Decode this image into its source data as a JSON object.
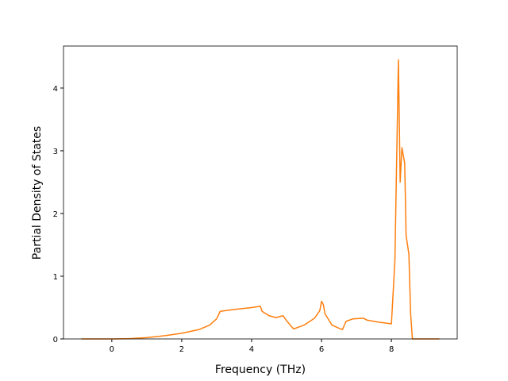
{
  "chart_data": {
    "type": "line",
    "x_label": "Frequency (THz)",
    "y_label": "Partial Density of States",
    "series": [
      {
        "color": "#ff7f0e",
        "x": [
          -0.87,
          0,
          0.5,
          1,
          1.5,
          2,
          2.5,
          2.8,
          3.0,
          3.1,
          3.5,
          4.0,
          4.25,
          4.3,
          4.5,
          4.7,
          4.9,
          5.0,
          5.2,
          5.5,
          5.8,
          5.95,
          6.0,
          6.05,
          6.1,
          6.3,
          6.5,
          6.6,
          6.7,
          6.9,
          7.2,
          7.3,
          7.6,
          8.0,
          8.1,
          8.2,
          8.25,
          8.3,
          8.38,
          8.42,
          8.5,
          8.55,
          8.6,
          9.37
        ],
        "values": [
          0,
          0,
          0.005,
          0.02,
          0.05,
          0.09,
          0.15,
          0.22,
          0.32,
          0.44,
          0.47,
          0.5,
          0.52,
          0.44,
          0.37,
          0.34,
          0.37,
          0.29,
          0.16,
          0.22,
          0.33,
          0.45,
          0.6,
          0.55,
          0.4,
          0.22,
          0.17,
          0.15,
          0.28,
          0.32,
          0.33,
          0.3,
          0.27,
          0.24,
          1.25,
          4.45,
          2.5,
          3.05,
          2.8,
          1.65,
          1.35,
          0.4,
          0,
          0
        ]
      }
    ],
    "xlim": [
      -1.382,
      9.882
    ],
    "ylim": [
      0,
      4.67
    ],
    "xticks": [
      0,
      2,
      4,
      6,
      8
    ],
    "yticks": [
      0,
      1,
      2,
      3,
      4
    ],
    "grid": false
  }
}
